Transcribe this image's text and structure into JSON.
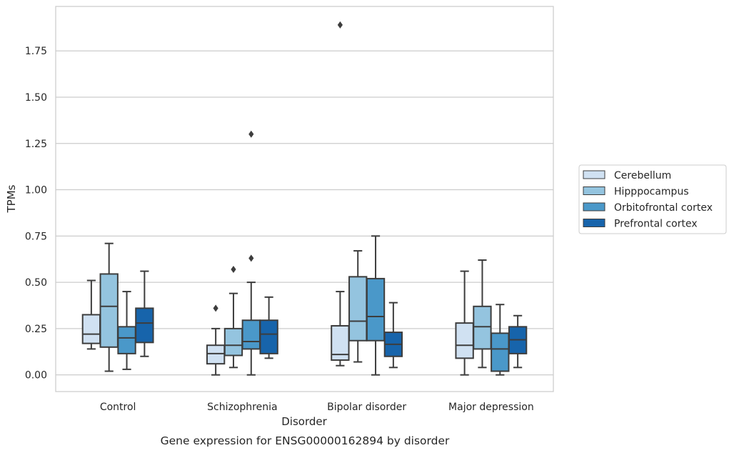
{
  "caption": "Gene expression for ENSG00000162894 by disorder",
  "chart_data": {
    "type": "box",
    "xlabel": "Disorder",
    "ylabel": "TPMs",
    "ylim": [
      -0.09,
      1.99
    ],
    "yticks": [
      "0.00",
      "0.25",
      "0.50",
      "0.75",
      "1.00",
      "1.25",
      "1.50",
      "1.75"
    ],
    "grid": "horizontal",
    "legend_position": "right",
    "categories": [
      "Control",
      "Schizophrenia",
      "Bipolar disorder",
      "Major depression"
    ],
    "series": [
      {
        "name": "Cerebellum",
        "color": "#d0e1f2",
        "boxes": [
          {
            "whislo": 0.14,
            "q1": 0.17,
            "med": 0.22,
            "q3": 0.325,
            "whishi": 0.51,
            "fliers": []
          },
          {
            "whislo": 0.0,
            "q1": 0.06,
            "med": 0.115,
            "q3": 0.16,
            "whishi": 0.25,
            "fliers": [
              0.36
            ]
          },
          {
            "whislo": 0.05,
            "q1": 0.08,
            "med": 0.11,
            "q3": 0.265,
            "whishi": 0.45,
            "fliers": [
              1.89
            ]
          },
          {
            "whislo": 0.0,
            "q1": 0.09,
            "med": 0.16,
            "q3": 0.28,
            "whishi": 0.56,
            "fliers": []
          }
        ]
      },
      {
        "name": "Hipppocampus",
        "color": "#94c4df",
        "boxes": [
          {
            "whislo": 0.02,
            "q1": 0.15,
            "med": 0.37,
            "q3": 0.545,
            "whishi": 0.71,
            "fliers": []
          },
          {
            "whislo": 0.04,
            "q1": 0.105,
            "med": 0.16,
            "q3": 0.25,
            "whishi": 0.44,
            "fliers": [
              0.57
            ]
          },
          {
            "whislo": 0.07,
            "q1": 0.185,
            "med": 0.29,
            "q3": 0.53,
            "whishi": 0.67,
            "fliers": []
          },
          {
            "whislo": 0.04,
            "q1": 0.14,
            "med": 0.26,
            "q3": 0.37,
            "whishi": 0.62,
            "fliers": []
          }
        ]
      },
      {
        "name": "Orbitofrontal cortex",
        "color": "#4a98c9",
        "boxes": [
          {
            "whislo": 0.03,
            "q1": 0.115,
            "med": 0.2,
            "q3": 0.26,
            "whishi": 0.45,
            "fliers": []
          },
          {
            "whislo": 0.0,
            "q1": 0.14,
            "med": 0.18,
            "q3": 0.295,
            "whishi": 0.5,
            "fliers": [
              0.63,
              1.3
            ]
          },
          {
            "whislo": 0.0,
            "q1": 0.185,
            "med": 0.315,
            "q3": 0.52,
            "whishi": 0.75,
            "fliers": []
          },
          {
            "whislo": 0.0,
            "q1": 0.02,
            "med": 0.14,
            "q3": 0.225,
            "whishi": 0.38,
            "fliers": []
          }
        ]
      },
      {
        "name": "Prefrontal cortex",
        "color": "#1764ab",
        "boxes": [
          {
            "whislo": 0.1,
            "q1": 0.175,
            "med": 0.28,
            "q3": 0.36,
            "whishi": 0.56,
            "fliers": []
          },
          {
            "whislo": 0.09,
            "q1": 0.115,
            "med": 0.22,
            "q3": 0.295,
            "whishi": 0.42,
            "fliers": []
          },
          {
            "whislo": 0.04,
            "q1": 0.1,
            "med": 0.165,
            "q3": 0.23,
            "whishi": 0.39,
            "fliers": []
          },
          {
            "whislo": 0.04,
            "q1": 0.115,
            "med": 0.19,
            "q3": 0.26,
            "whishi": 0.32,
            "fliers": []
          }
        ]
      }
    ]
  }
}
